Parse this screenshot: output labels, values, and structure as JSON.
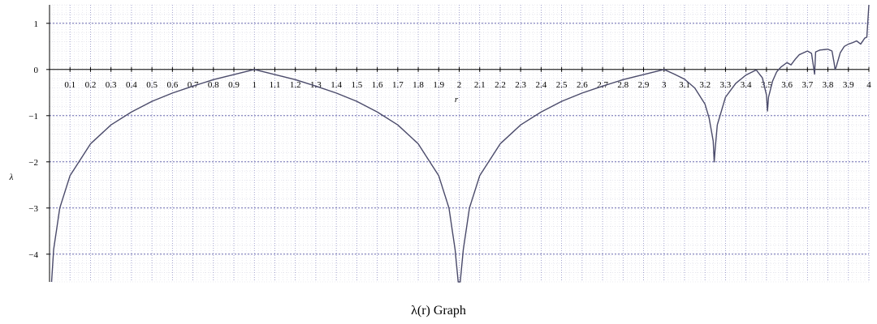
{
  "chart_data": {
    "type": "line",
    "title": "λ(r) Graph",
    "xlabel": "r",
    "ylabel": "λ",
    "xlim": [
      0,
      4
    ],
    "ylim": [
      -4.6,
      1.4
    ],
    "grid": true,
    "x_ticks": [
      "0.1",
      "0.2",
      "0.3",
      "0.4",
      "0.5",
      "0.6",
      "0.7",
      "0.8",
      "0.9",
      "1",
      "1.1",
      "1.2",
      "1.3",
      "1.4",
      "1.5",
      "1.6",
      "1.7",
      "1.8",
      "1.9",
      "2",
      "2.1",
      "2.2",
      "2.3",
      "2.4",
      "2.5",
      "2.6",
      "2.7",
      "2.8",
      "2.9",
      "3",
      "3.1",
      "3.2",
      "3.3",
      "3.4",
      "3.5",
      "3.6",
      "3.7",
      "3.8",
      "3.9",
      "4"
    ],
    "y_ticks": [
      "1",
      "0",
      "−1",
      "−2",
      "−3",
      "−4"
    ],
    "series": [
      {
        "color": "#4a4a6a",
        "points": [
          [
            0.01,
            -4.6
          ],
          [
            0.02,
            -3.9
          ],
          [
            0.05,
            -3.0
          ],
          [
            0.1,
            -2.3
          ],
          [
            0.2,
            -1.61
          ],
          [
            0.3,
            -1.2
          ],
          [
            0.4,
            -0.92
          ],
          [
            0.5,
            -0.69
          ],
          [
            0.6,
            -0.51
          ],
          [
            0.7,
            -0.36
          ],
          [
            0.8,
            -0.22
          ],
          [
            0.9,
            -0.11
          ],
          [
            1.0,
            0.0
          ],
          [
            1.1,
            -0.11
          ],
          [
            1.2,
            -0.22
          ],
          [
            1.3,
            -0.36
          ],
          [
            1.4,
            -0.51
          ],
          [
            1.5,
            -0.69
          ],
          [
            1.6,
            -0.92
          ],
          [
            1.7,
            -1.2
          ],
          [
            1.8,
            -1.61
          ],
          [
            1.9,
            -2.3
          ],
          [
            1.95,
            -3.0
          ],
          [
            1.98,
            -3.9
          ],
          [
            1.995,
            -4.6
          ],
          [
            2.005,
            -4.6
          ],
          [
            2.02,
            -3.9
          ],
          [
            2.05,
            -3.0
          ],
          [
            2.1,
            -2.3
          ],
          [
            2.2,
            -1.61
          ],
          [
            2.3,
            -1.2
          ],
          [
            2.4,
            -0.92
          ],
          [
            2.5,
            -0.69
          ],
          [
            2.6,
            -0.51
          ],
          [
            2.7,
            -0.36
          ],
          [
            2.8,
            -0.22
          ],
          [
            2.9,
            -0.11
          ],
          [
            3.0,
            0.0
          ],
          [
            3.05,
            -0.1
          ],
          [
            3.1,
            -0.21
          ],
          [
            3.15,
            -0.4
          ],
          [
            3.2,
            -0.75
          ],
          [
            3.22,
            -1.05
          ],
          [
            3.24,
            -1.55
          ],
          [
            3.245,
            -2.0
          ],
          [
            3.25,
            -1.7
          ],
          [
            3.26,
            -1.2
          ],
          [
            3.3,
            -0.6
          ],
          [
            3.35,
            -0.3
          ],
          [
            3.4,
            -0.12
          ],
          [
            3.45,
            -0.01
          ],
          [
            3.48,
            -0.18
          ],
          [
            3.5,
            -0.55
          ],
          [
            3.505,
            -0.9
          ],
          [
            3.51,
            -0.6
          ],
          [
            3.53,
            -0.25
          ],
          [
            3.55,
            -0.05
          ],
          [
            3.57,
            0.05
          ],
          [
            3.6,
            0.15
          ],
          [
            3.62,
            0.1
          ],
          [
            3.64,
            0.22
          ],
          [
            3.66,
            0.32
          ],
          [
            3.68,
            0.36
          ],
          [
            3.7,
            0.4
          ],
          [
            3.72,
            0.35
          ],
          [
            3.735,
            -0.1
          ],
          [
            3.74,
            0.38
          ],
          [
            3.76,
            0.42
          ],
          [
            3.8,
            0.44
          ],
          [
            3.82,
            0.4
          ],
          [
            3.83,
            0.15
          ],
          [
            3.835,
            0.0
          ],
          [
            3.84,
            0.05
          ],
          [
            3.86,
            0.36
          ],
          [
            3.88,
            0.5
          ],
          [
            3.9,
            0.55
          ],
          [
            3.92,
            0.58
          ],
          [
            3.94,
            0.62
          ],
          [
            3.96,
            0.55
          ],
          [
            3.98,
            0.68
          ],
          [
            3.99,
            0.7
          ],
          [
            4.0,
            1.4
          ]
        ]
      }
    ]
  }
}
